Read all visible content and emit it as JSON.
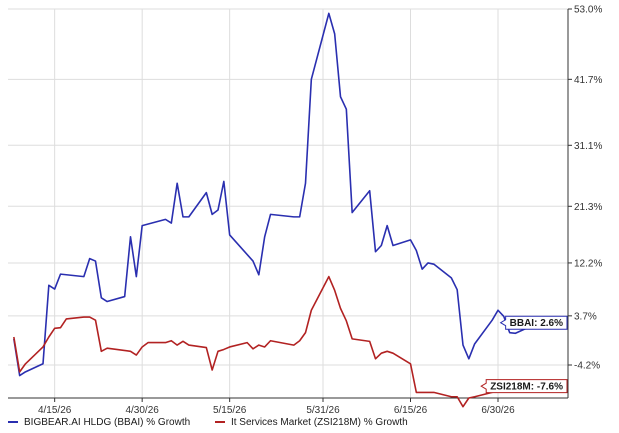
{
  "colors": {
    "bbai": "#2a2fb0",
    "zsi": "#b22222",
    "grid": "#dddddd",
    "axis": "#333333"
  },
  "legend": {
    "bbai": "BIGBEAR.AI HLDG (BBAI) % Growth",
    "zsi": "It Services Market (ZSI218M) % Growth"
  },
  "chart_data": {
    "type": "line",
    "title": "",
    "xlabel": "",
    "ylabel": "",
    "x_start": "2026-04-07",
    "x_end": "2026-07-12",
    "ylim": [
      -9.5,
      53.0
    ],
    "y_ticks": [
      {
        "value": 53.0,
        "label": "53.0%"
      },
      {
        "value": 41.7,
        "label": "41.7%"
      },
      {
        "value": 31.1,
        "label": "31.1%"
      },
      {
        "value": 21.3,
        "label": "21.3%"
      },
      {
        "value": 12.2,
        "label": "12.2%"
      },
      {
        "value": 3.7,
        "label": "3.7%"
      },
      {
        "value": -4.2,
        "label": "-4.2%"
      }
    ],
    "x_ticks": [
      {
        "date": "2026-04-15",
        "label": "4/15/26"
      },
      {
        "date": "2026-04-30",
        "label": "4/30/26"
      },
      {
        "date": "2026-05-15",
        "label": "5/15/26"
      },
      {
        "date": "2026-05-31",
        "label": "5/31/26"
      },
      {
        "date": "2026-06-15",
        "label": "6/15/26"
      },
      {
        "date": "2026-06-30",
        "label": "6/30/26"
      }
    ],
    "grid": true,
    "legend_position": "bottom",
    "series": [
      {
        "name": "BIGBEAR.AI HLDG (BBAI) % Growth",
        "end_label": "BBAI: 2.6%",
        "color": "#2a2fb0",
        "points": [
          [
            "2026-04-08",
            0.0
          ],
          [
            "2026-04-09",
            -5.9
          ],
          [
            "2026-04-10",
            -5.3
          ],
          [
            "2026-04-13",
            -4.0
          ],
          [
            "2026-04-14",
            8.6
          ],
          [
            "2026-04-15",
            8.0
          ],
          [
            "2026-04-16",
            10.4
          ],
          [
            "2026-04-20",
            10.0
          ],
          [
            "2026-04-21",
            12.9
          ],
          [
            "2026-04-22",
            12.5
          ],
          [
            "2026-04-23",
            6.6
          ],
          [
            "2026-04-24",
            6.0
          ],
          [
            "2026-04-27",
            6.8
          ],
          [
            "2026-04-28",
            16.4
          ],
          [
            "2026-04-29",
            10.0
          ],
          [
            "2026-04-30",
            18.2
          ],
          [
            "2026-05-04",
            19.2
          ],
          [
            "2026-05-05",
            18.6
          ],
          [
            "2026-05-06",
            25.0
          ],
          [
            "2026-05-07",
            19.6
          ],
          [
            "2026-05-08",
            19.6
          ],
          [
            "2026-05-11",
            23.5
          ],
          [
            "2026-05-12",
            20.0
          ],
          [
            "2026-05-13",
            20.7
          ],
          [
            "2026-05-14",
            25.3
          ],
          [
            "2026-05-15",
            16.7
          ],
          [
            "2026-05-19",
            12.5
          ],
          [
            "2026-05-20",
            10.3
          ],
          [
            "2026-05-21",
            16.4
          ],
          [
            "2026-05-22",
            20.0
          ],
          [
            "2026-05-26",
            19.6
          ],
          [
            "2026-05-27",
            19.6
          ],
          [
            "2026-05-28",
            25.0
          ],
          [
            "2026-05-29",
            41.7
          ],
          [
            "2026-06-01",
            52.3
          ],
          [
            "2026-06-02",
            49.0
          ],
          [
            "2026-06-03",
            38.9
          ],
          [
            "2026-06-04",
            36.9
          ],
          [
            "2026-06-05",
            20.3
          ],
          [
            "2026-06-08",
            23.8
          ],
          [
            "2026-06-09",
            14.0
          ],
          [
            "2026-06-10",
            15.0
          ],
          [
            "2026-06-11",
            18.2
          ],
          [
            "2026-06-12",
            15.0
          ],
          [
            "2026-06-15",
            15.9
          ],
          [
            "2026-06-16",
            14.2
          ],
          [
            "2026-06-17",
            11.2
          ],
          [
            "2026-06-18",
            12.2
          ],
          [
            "2026-06-19",
            12.0
          ],
          [
            "2026-06-22",
            9.8
          ],
          [
            "2026-06-23",
            7.9
          ],
          [
            "2026-06-24",
            -1.0
          ],
          [
            "2026-06-25",
            -3.2
          ],
          [
            "2026-06-26",
            -0.8
          ],
          [
            "2026-06-29",
            3.0
          ],
          [
            "2026-06-30",
            4.6
          ],
          [
            "2026-07-01",
            3.6
          ],
          [
            "2026-07-02",
            1.0
          ],
          [
            "2026-07-03",
            0.9
          ],
          [
            "2026-07-07",
            2.6
          ]
        ]
      },
      {
        "name": "It Services Market (ZSI218M) % Growth",
        "end_label": "ZSI218M: -7.6%",
        "color": "#b22222",
        "points": [
          [
            "2026-04-08",
            0.3
          ],
          [
            "2026-04-09",
            -5.3
          ],
          [
            "2026-04-10",
            -4.0
          ],
          [
            "2026-04-13",
            -1.3
          ],
          [
            "2026-04-14",
            0.3
          ],
          [
            "2026-04-15",
            1.7
          ],
          [
            "2026-04-16",
            1.8
          ],
          [
            "2026-04-17",
            3.2
          ],
          [
            "2026-04-20",
            3.5
          ],
          [
            "2026-04-21",
            3.5
          ],
          [
            "2026-04-22",
            3.0
          ],
          [
            "2026-04-23",
            -2.0
          ],
          [
            "2026-04-24",
            -1.5
          ],
          [
            "2026-04-28",
            -2.0
          ],
          [
            "2026-04-29",
            -2.6
          ],
          [
            "2026-04-30",
            -1.3
          ],
          [
            "2026-05-01",
            -0.6
          ],
          [
            "2026-05-04",
            -0.6
          ],
          [
            "2026-05-05",
            -0.3
          ],
          [
            "2026-05-06",
            -1.0
          ],
          [
            "2026-05-07",
            -0.4
          ],
          [
            "2026-05-08",
            -1.0
          ],
          [
            "2026-05-11",
            -1.4
          ],
          [
            "2026-05-12",
            -5.0
          ],
          [
            "2026-05-13",
            -2.0
          ],
          [
            "2026-05-14",
            -1.7
          ],
          [
            "2026-05-15",
            -1.3
          ],
          [
            "2026-05-18",
            -0.6
          ],
          [
            "2026-05-19",
            -1.6
          ],
          [
            "2026-05-20",
            -1.0
          ],
          [
            "2026-05-21",
            -1.3
          ],
          [
            "2026-05-22",
            -0.3
          ],
          [
            "2026-05-26",
            -1.0
          ],
          [
            "2026-05-27",
            -0.3
          ],
          [
            "2026-05-28",
            1.0
          ],
          [
            "2026-05-29",
            4.6
          ],
          [
            "2026-06-01",
            10.0
          ],
          [
            "2026-06-02",
            7.8
          ],
          [
            "2026-06-03",
            4.9
          ],
          [
            "2026-06-04",
            2.9
          ],
          [
            "2026-06-05",
            0.0
          ],
          [
            "2026-06-08",
            -0.4
          ],
          [
            "2026-06-09",
            -3.2
          ],
          [
            "2026-06-10",
            -2.3
          ],
          [
            "2026-06-11",
            -2.0
          ],
          [
            "2026-06-12",
            -2.3
          ],
          [
            "2026-06-15",
            -4.0
          ],
          [
            "2026-06-16",
            -8.6
          ],
          [
            "2026-06-17",
            -8.6
          ],
          [
            "2026-06-19",
            -8.6
          ],
          [
            "2026-06-22",
            -9.3
          ],
          [
            "2026-06-23",
            -9.3
          ],
          [
            "2026-06-24",
            -10.9
          ],
          [
            "2026-06-25",
            -9.5
          ],
          [
            "2026-06-26",
            -9.3
          ],
          [
            "2026-06-29",
            -8.6
          ],
          [
            "2026-06-30",
            -7.6
          ],
          [
            "2026-07-02",
            -7.6
          ]
        ]
      }
    ]
  }
}
